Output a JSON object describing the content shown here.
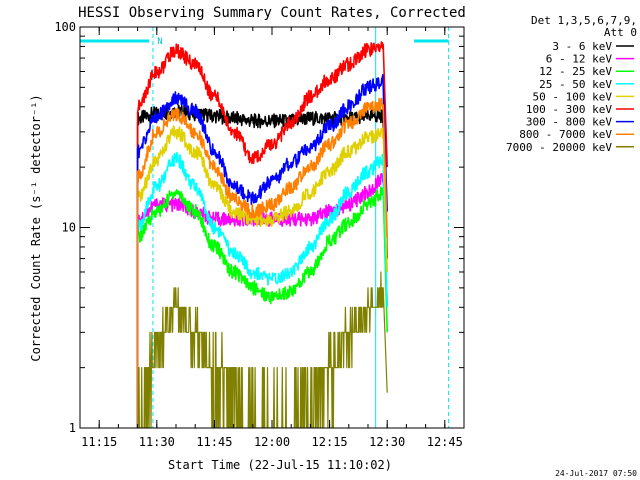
{
  "chart_data": {
    "type": "line",
    "title": "HESSI Observing Summary Count Rates, Corrected",
    "xlabel": "Start Time (22-Jul-15 11:10:02)",
    "ylabel": "Corrected Count Rate (s⁻¹ detector⁻¹)",
    "y_scale": "log",
    "ylim": [
      1,
      100
    ],
    "xlim": [
      "11:10",
      "12:50"
    ],
    "x_ticks": [
      "11:15",
      "11:30",
      "11:45",
      "12:00",
      "12:15",
      "12:30",
      "12:45"
    ],
    "y_ticks": [
      "1",
      "10",
      "100"
    ],
    "legend_header": [
      "Det 1,3,5,6,7,9,",
      "Att 0"
    ],
    "legend_position": "right",
    "footer": "24-Jul-2017 07:50",
    "flag_marker": "N",
    "attenuator_state_text": "Att 0",
    "flags": {
      "color": "#00e5ee",
      "night_intervals": [
        [
          "11:10",
          "11:28"
        ],
        [
          "12:37",
          "12:46"
        ]
      ],
      "dashed_boundaries": [
        "11:29",
        "12:46"
      ],
      "solid_boundaries": [
        "11:10",
        "12:27"
      ]
    },
    "series": [
      {
        "name": "3 - 6 keV",
        "color": "#000000",
        "x": [
          "11:25",
          "11:30",
          "11:35",
          "11:40",
          "11:45",
          "11:50",
          "11:55",
          "12:00",
          "12:05",
          "12:10",
          "12:15",
          "12:20",
          "12:25",
          "12:29",
          "12:30"
        ],
        "values": [
          35,
          37,
          38,
          37,
          36,
          35,
          34,
          34,
          34,
          35,
          35,
          35,
          36,
          36,
          7
        ]
      },
      {
        "name": "6 - 12 keV",
        "color": "#ff00ff",
        "x": [
          "11:25",
          "11:30",
          "11:35",
          "11:40",
          "11:45",
          "11:50",
          "11:55",
          "12:00",
          "12:05",
          "12:10",
          "12:15",
          "12:20",
          "12:25",
          "12:29",
          "12:30"
        ],
        "values": [
          11,
          13,
          13,
          12,
          11,
          11,
          11,
          11,
          11,
          11,
          12,
          13,
          15,
          18,
          4
        ]
      },
      {
        "name": "12 - 25 keV",
        "color": "#00ff00",
        "x": [
          "11:25",
          "11:30",
          "11:35",
          "11:40",
          "11:45",
          "11:50",
          "11:55",
          "12:00",
          "12:05",
          "12:10",
          "12:15",
          "12:20",
          "12:25",
          "12:29",
          "12:30"
        ],
        "values": [
          9,
          12,
          15,
          12,
          8,
          6,
          5,
          4.5,
          4.8,
          6,
          8.5,
          10.5,
          13,
          15,
          3
        ]
      },
      {
        "name": "25 - 50 keV",
        "color": "#00ffff",
        "x": [
          "11:25",
          "11:30",
          "11:35",
          "11:40",
          "11:45",
          "11:50",
          "11:55",
          "12:00",
          "12:05",
          "12:10",
          "12:15",
          "12:20",
          "12:25",
          "12:29",
          "12:30"
        ],
        "values": [
          10,
          16,
          22,
          16,
          10,
          7.5,
          6,
          5.5,
          6,
          8,
          11,
          15,
          19,
          22,
          4
        ]
      },
      {
        "name": "50 - 100 keV",
        "color": "#e0d000",
        "x": [
          "11:25",
          "11:30",
          "11:35",
          "11:40",
          "11:45",
          "11:50",
          "11:55",
          "12:00",
          "12:05",
          "12:10",
          "12:15",
          "12:20",
          "12:25",
          "12:29",
          "12:30"
        ],
        "values": [
          14,
          22,
          30,
          24,
          16,
          12,
          11,
          11,
          12,
          15,
          19,
          24,
          28,
          29,
          6
        ]
      },
      {
        "name": "100 - 300 keV",
        "color": "#ff0000",
        "x": [
          "11:25",
          "11:30",
          "11:35",
          "11:40",
          "11:45",
          "11:50",
          "11:55",
          "12:00",
          "12:05",
          "12:10",
          "12:15",
          "12:20",
          "12:25",
          "12:29",
          "12:30"
        ],
        "values": [
          40,
          60,
          76,
          65,
          45,
          30,
          22,
          26,
          33,
          45,
          55,
          65,
          77,
          80,
          20
        ]
      },
      {
        "name": "300 - 800 keV",
        "color": "#0000ff",
        "x": [
          "11:25",
          "11:30",
          "11:35",
          "11:40",
          "11:45",
          "11:50",
          "11:55",
          "12:00",
          "12:05",
          "12:10",
          "12:15",
          "12:20",
          "12:25",
          "12:29",
          "12:30"
        ],
        "values": [
          24,
          36,
          44,
          38,
          24,
          16,
          14,
          17,
          21,
          25,
          32,
          40,
          50,
          54,
          12
        ]
      },
      {
        "name": "800 - 7000 keV",
        "color": "#ff8000",
        "x": [
          "11:25",
          "11:30",
          "11:35",
          "11:40",
          "11:45",
          "11:50",
          "11:55",
          "12:00",
          "12:05",
          "12:10",
          "12:15",
          "12:20",
          "12:25",
          "12:29",
          "12:30"
        ],
        "values": [
          18,
          30,
          37,
          30,
          20,
          14,
          12,
          13,
          16,
          20,
          26,
          33,
          39,
          41,
          9
        ]
      },
      {
        "name": "7000 - 20000 keV",
        "color": "#808000",
        "x": [
          "11:25",
          "11:30",
          "11:35",
          "11:40",
          "11:45",
          "11:50",
          "11:55",
          "12:00",
          "12:05",
          "12:10",
          "12:15",
          "12:20",
          "12:25",
          "12:29",
          "12:30"
        ],
        "values": [
          1,
          2.5,
          4,
          3,
          2,
          1.5,
          1,
          1,
          1,
          1.5,
          2,
          3,
          4,
          5,
          1.5
        ]
      }
    ]
  }
}
